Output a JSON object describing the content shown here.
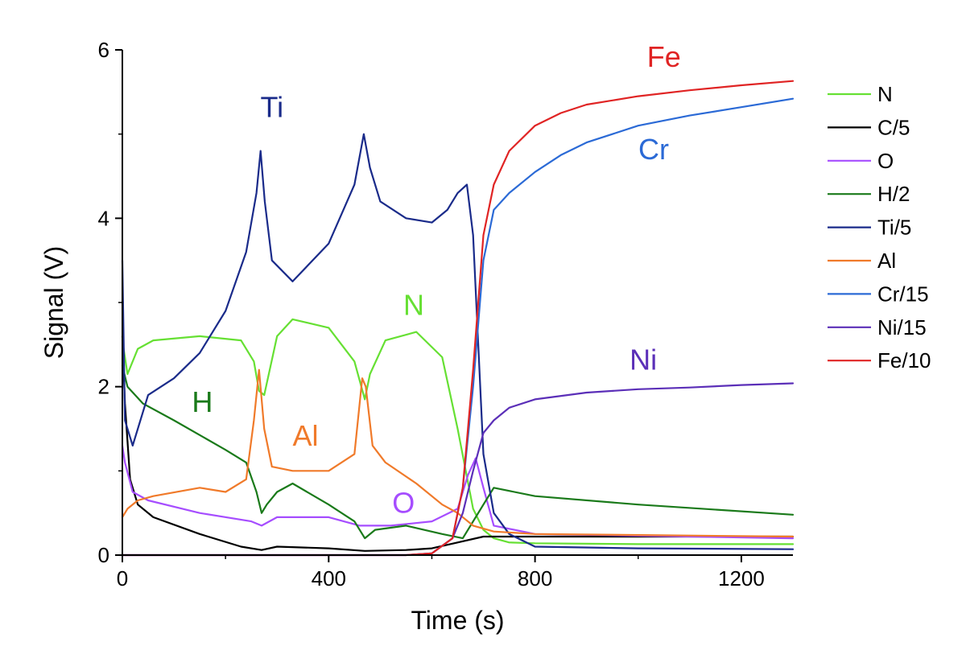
{
  "chart_data": {
    "type": "line",
    "title": "",
    "xlabel": "Time (s)",
    "ylabel": "Signal (V)",
    "xlim": [
      0,
      1300
    ],
    "ylim": [
      0,
      6
    ],
    "xticks": [
      0,
      400,
      800,
      1200
    ],
    "xtick_labels": [
      "0",
      "400",
      "800",
      "1200"
    ],
    "yticks": [
      0,
      2,
      4,
      6
    ],
    "ytick_labels": [
      "0",
      "2",
      "4",
      "6"
    ],
    "grid": false,
    "legend_position": "right",
    "series": [
      {
        "name": "N",
        "color": "#66e033",
        "x": [
          0,
          10,
          30,
          60,
          150,
          230,
          255,
          265,
          275,
          300,
          330,
          400,
          450,
          470,
          480,
          510,
          570,
          620,
          650,
          680,
          700,
          720,
          750,
          800,
          1000,
          1300
        ],
        "y": [
          2.55,
          2.15,
          2.45,
          2.55,
          2.6,
          2.55,
          2.3,
          1.95,
          1.9,
          2.6,
          2.8,
          2.7,
          2.3,
          1.85,
          2.15,
          2.55,
          2.65,
          2.35,
          1.5,
          0.55,
          0.3,
          0.2,
          0.15,
          0.14,
          0.13,
          0.13
        ]
      },
      {
        "name": "C/5",
        "color": "#000000",
        "x": [
          0,
          5,
          15,
          30,
          60,
          150,
          230,
          270,
          300,
          400,
          470,
          550,
          600,
          650,
          700,
          800,
          1300
        ],
        "y": [
          2.6,
          1.8,
          0.9,
          0.6,
          0.45,
          0.25,
          0.1,
          0.06,
          0.1,
          0.08,
          0.05,
          0.06,
          0.08,
          0.15,
          0.22,
          0.22,
          0.22
        ]
      },
      {
        "name": "O",
        "color": "#a64dff",
        "x": [
          0,
          5,
          20,
          50,
          150,
          250,
          270,
          300,
          400,
          460,
          520,
          600,
          650,
          670,
          685,
          700,
          720,
          800,
          1300
        ],
        "y": [
          1.3,
          1.1,
          0.75,
          0.65,
          0.5,
          0.4,
          0.35,
          0.45,
          0.45,
          0.35,
          0.35,
          0.4,
          0.55,
          0.95,
          1.15,
          0.8,
          0.35,
          0.25,
          0.2
        ]
      },
      {
        "name": "H/2",
        "color": "#1a7a1a",
        "x": [
          0,
          10,
          40,
          100,
          200,
          240,
          260,
          270,
          280,
          300,
          330,
          400,
          450,
          470,
          490,
          550,
          620,
          660,
          700,
          720,
          800,
          1000,
          1300
        ],
        "y": [
          2.25,
          2.0,
          1.8,
          1.6,
          1.25,
          1.1,
          0.75,
          0.5,
          0.6,
          0.75,
          0.85,
          0.6,
          0.4,
          0.2,
          0.3,
          0.35,
          0.25,
          0.2,
          0.6,
          0.8,
          0.7,
          0.6,
          0.48
        ]
      },
      {
        "name": "Ti/5",
        "color": "#1a2b8a",
        "x": [
          0,
          5,
          20,
          50,
          100,
          150,
          200,
          240,
          260,
          268,
          276,
          290,
          330,
          400,
          450,
          468,
          480,
          500,
          550,
          600,
          630,
          650,
          668,
          680,
          690,
          700,
          720,
          750,
          800,
          1000,
          1300
        ],
        "y": [
          3.5,
          1.6,
          1.3,
          1.9,
          2.1,
          2.4,
          2.9,
          3.6,
          4.3,
          4.8,
          4.2,
          3.5,
          3.25,
          3.7,
          4.4,
          5.0,
          4.6,
          4.2,
          4.0,
          3.95,
          4.1,
          4.3,
          4.4,
          3.8,
          2.5,
          1.2,
          0.5,
          0.25,
          0.1,
          0.08,
          0.07
        ]
      },
      {
        "name": "Al",
        "color": "#f07a2a",
        "x": [
          0,
          10,
          30,
          60,
          150,
          200,
          240,
          255,
          265,
          275,
          290,
          330,
          400,
          450,
          465,
          472,
          485,
          510,
          570,
          620,
          650,
          680,
          720,
          800,
          1300
        ],
        "y": [
          0.45,
          0.55,
          0.65,
          0.7,
          0.8,
          0.75,
          0.9,
          1.6,
          2.2,
          1.5,
          1.05,
          1.0,
          1.0,
          1.2,
          2.1,
          2.0,
          1.3,
          1.1,
          0.85,
          0.6,
          0.5,
          0.35,
          0.28,
          0.25,
          0.22
        ]
      },
      {
        "name": "Cr/15",
        "color": "#2b6ad6",
        "x": [
          0,
          550,
          600,
          640,
          660,
          680,
          700,
          720,
          750,
          800,
          850,
          900,
          1000,
          1100,
          1200,
          1300
        ],
        "y": [
          0.0,
          0.0,
          0.02,
          0.2,
          0.8,
          2.0,
          3.5,
          4.1,
          4.3,
          4.55,
          4.75,
          4.9,
          5.1,
          5.22,
          5.32,
          5.42
        ]
      },
      {
        "name": "Ni/15",
        "color": "#5b2fb8",
        "x": [
          0,
          550,
          600,
          640,
          660,
          680,
          700,
          720,
          750,
          800,
          900,
          1000,
          1100,
          1200,
          1300
        ],
        "y": [
          0.0,
          0.0,
          0.02,
          0.2,
          0.5,
          1.0,
          1.45,
          1.6,
          1.75,
          1.85,
          1.93,
          1.97,
          1.99,
          2.02,
          2.04
        ]
      },
      {
        "name": "Fe/10",
        "color": "#e02424",
        "x": [
          0,
          550,
          600,
          640,
          660,
          680,
          700,
          720,
          750,
          800,
          850,
          900,
          1000,
          1100,
          1200,
          1300
        ],
        "y": [
          0.0,
          0.0,
          0.02,
          0.2,
          0.8,
          2.2,
          3.8,
          4.4,
          4.8,
          5.1,
          5.25,
          5.35,
          5.45,
          5.52,
          5.58,
          5.63
        ]
      }
    ],
    "annotations": [
      {
        "text": "Fe",
        "x": 1050,
        "y": 5.8,
        "color": "#e02424"
      },
      {
        "text": "Ti",
        "x": 290,
        "y": 5.2,
        "color": "#1a2b8a"
      },
      {
        "text": "Cr",
        "x": 1030,
        "y": 4.7,
        "color": "#2b6ad6"
      },
      {
        "text": "N",
        "x": 565,
        "y": 2.85,
        "color": "#66e033"
      },
      {
        "text": "Ni",
        "x": 1010,
        "y": 2.2,
        "color": "#5b2fb8"
      },
      {
        "text": "H",
        "x": 155,
        "y": 1.7,
        "color": "#1a7a1a"
      },
      {
        "text": "Al",
        "x": 355,
        "y": 1.3,
        "color": "#f07a2a"
      },
      {
        "text": "O",
        "x": 545,
        "y": 0.5,
        "color": "#a64dff"
      }
    ]
  }
}
